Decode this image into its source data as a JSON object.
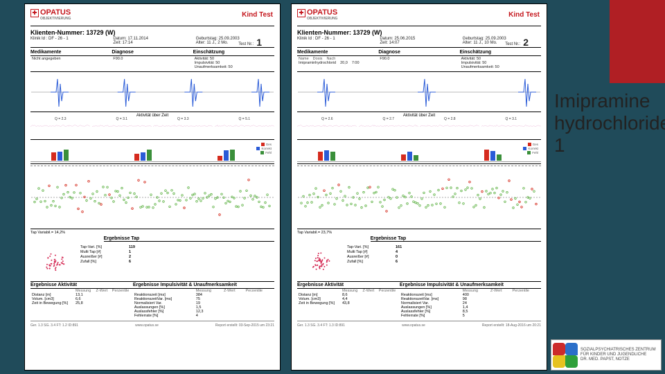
{
  "slide": {
    "bg": "#204b5a",
    "accent": "#b01f24",
    "title": "Imipramine hydrochloride 1"
  },
  "brand": {
    "name": "OPATUS",
    "sub": "OBJEKTIVIERUNG",
    "kind": "Kind Test",
    "color": "#c4161c"
  },
  "reports": [
    {
      "klienten": "Klienten-Nummer: 13729 (W)",
      "klinik": "Klinik Id : DF - 26 - 1",
      "datum": "Datum: 17.11.2014",
      "zeit": "Zeit: 17:14",
      "geburtstag": "Geburtstag: 25.09.2003",
      "alter": "Alter: 11 J., 2 Mo.",
      "testnr_label": "Test Nr.:",
      "testnr": "1",
      "sections": {
        "med": "Medikamente",
        "diag": "Diagnose",
        "ein": "Einschätzung"
      },
      "med_body": "Nicht angegeben",
      "diag_body": "F90.0",
      "ein_body": [
        "Aktivität: 50",
        "Impulsivität: 50",
        "Unaufmerksamkeit: 50"
      ],
      "akt_label": "Aktivität über Zeit",
      "quads": [
        "Q = 2.3",
        "Q = 3.1",
        "Q = 3.3",
        "Q = 5.1"
      ],
      "cpt_label": "CPT AufTest",
      "tap_pct": "Tap Variabil.= 14,2%",
      "erg_tap": "Ergebnisse Tap",
      "tap_vals": [
        [
          "Tap-Vari. [%]",
          "119"
        ],
        [
          "Multi Tap [#]",
          "1"
        ],
        [
          "Ausreißer [#]",
          "2"
        ],
        [
          "Zufall [%]",
          "6"
        ]
      ],
      "res_a": "Ergebnisse Aktivität",
      "res_b": "Ergebnisse Impulsivität & Unaufmerksamkeit",
      "tbl_hdr_a": [
        "",
        "Messung",
        "Z-Wert",
        "Perzentile"
      ],
      "tbl_a": [
        [
          "Distanz [m]",
          "13,1",
          "",
          ""
        ],
        [
          "Volum. [cm3]",
          "6,6",
          "",
          ""
        ],
        [
          "Zeit in Bewegung [%]",
          "25,8",
          "",
          ""
        ]
      ],
      "tbl_hdr_b": [
        "",
        "Messung",
        "Z-Wert",
        "Perzentile"
      ],
      "tbl_b": [
        [
          "Reaktionszeit [ms]",
          "384",
          "",
          ""
        ],
        [
          "ReaktionszeitVar. [ms]",
          "75",
          "",
          ""
        ],
        [
          "Normalisiert Var.",
          "19",
          "",
          ""
        ],
        [
          "Auslassungen [%]",
          "1,5",
          "",
          ""
        ],
        [
          "Auslassfehler [%]",
          "12,3",
          "",
          ""
        ],
        [
          "Fehlerrate [%]",
          "4",
          "",
          ""
        ]
      ],
      "footer_l": "Ger. 1.3   SG. 3.4   FT: 1.2   ID:891",
      "footer_c": "www.opatus.se",
      "footer_r": "Report erstellt: 03-Sep-2015 um 23:21",
      "colors": {
        "spike": "#2a5bd7",
        "wave": "#d978b5",
        "dot_ok": "#63b44a",
        "dot_err": "#d52b1e",
        "splat": "#d52b55",
        "bar1": "#d52b1e",
        "bar2": "#2a5bd7",
        "bar3": "#3a8f3a"
      }
    },
    {
      "klienten": "Klienten-Nummer: 13729 (W)",
      "klinik": "Klinik Id : DF - 26 - 1",
      "datum": "Datum: 25.06.2015",
      "zeit": "Zeit: 14:07",
      "geburtstag": "Geburtstag: 25.09.2003",
      "alter": "Alter: 11 J., 10 Mo.",
      "testnr_label": "Test Nr.:",
      "testnr": "2",
      "sections": {
        "med": "Medikamente",
        "diag": "Diagnose",
        "ein": "Einschätzung"
      },
      "med_body_hdr": [
        "Name",
        "Dosis",
        "Nach"
      ],
      "med_body_row": [
        "Imipraminhydrochlorid",
        "20,0",
        "7:00"
      ],
      "diag_body": "F90.0",
      "ein_body": [
        "Aktivität: 50",
        "Impulsivität: 50",
        "Unaufmerksamkeit: 50"
      ],
      "akt_label": "Aktivität über Zeit",
      "quads": [
        "Q = 2.6",
        "Q = 2.7",
        "Q = 2.8",
        "Q = 3.1"
      ],
      "cpt_label": "CPT AufTest",
      "tap_pct": "Tap Variabil.= 23,7%",
      "erg_tap": "Ergebnisse Tap",
      "tap_vals": [
        [
          "Tap-Vari. [%]",
          "161"
        ],
        [
          "Multi Tap [#]",
          "4"
        ],
        [
          "Ausreißer [#]",
          "0"
        ],
        [
          "Zufall [%]",
          "6"
        ]
      ],
      "res_a": "Ergebnisse Aktivität",
      "res_b": "Ergebnisse Impulsivität & Unaufmerksamkeit",
      "tbl_hdr_a": [
        "",
        "Messung",
        "Z-Wert",
        "Perzentile"
      ],
      "tbl_a": [
        [
          "Distanz [m]",
          "8,6",
          "",
          ""
        ],
        [
          "Volum. [cm3]",
          "4,4",
          "",
          ""
        ],
        [
          "Zeit in Bewegung [%]",
          "43,8",
          "",
          ""
        ]
      ],
      "tbl_hdr_b": [
        "",
        "Messung",
        "Z-Wert",
        "Perzentile"
      ],
      "tbl_b": [
        [
          "Reaktionszeit [ms]",
          "400",
          "",
          ""
        ],
        [
          "ReaktionszeitVar. [ms]",
          "98",
          "",
          ""
        ],
        [
          "Normalisiert Var.",
          "24",
          "",
          ""
        ],
        [
          "Auslassungen [%]",
          "1,4",
          "",
          ""
        ],
        [
          "Auslassfehler [%]",
          "8,5",
          "",
          ""
        ],
        [
          "Fehlerrate [%]",
          "5",
          "",
          ""
        ]
      ],
      "footer_l": "Ger. 1.3   SG. 3.4   FT: 1.3   ID:891",
      "footer_c": "www.opatus.se",
      "footer_r": "Report erstellt: 18-Aug-2016 um 20:21",
      "colors": {
        "spike": "#2a5bd7",
        "wave": "#d978b5",
        "dot_ok": "#63b44a",
        "dot_err": "#d52b1e",
        "splat": "#d52b55",
        "bar1": "#d52b1e",
        "bar2": "#2a5bd7",
        "bar3": "#3a8f3a"
      }
    }
  ],
  "corner": {
    "lines": [
      "SOZIALPSYCHIATRISCHES ZENTRUM",
      "FÜR KINDER UND JUGENDLICHE",
      "DR. MED. PAPST, NOTZE"
    ],
    "colors": [
      "#cc2b2b",
      "#2b6fc9",
      "#e6c21f",
      "#2ea03a"
    ]
  }
}
